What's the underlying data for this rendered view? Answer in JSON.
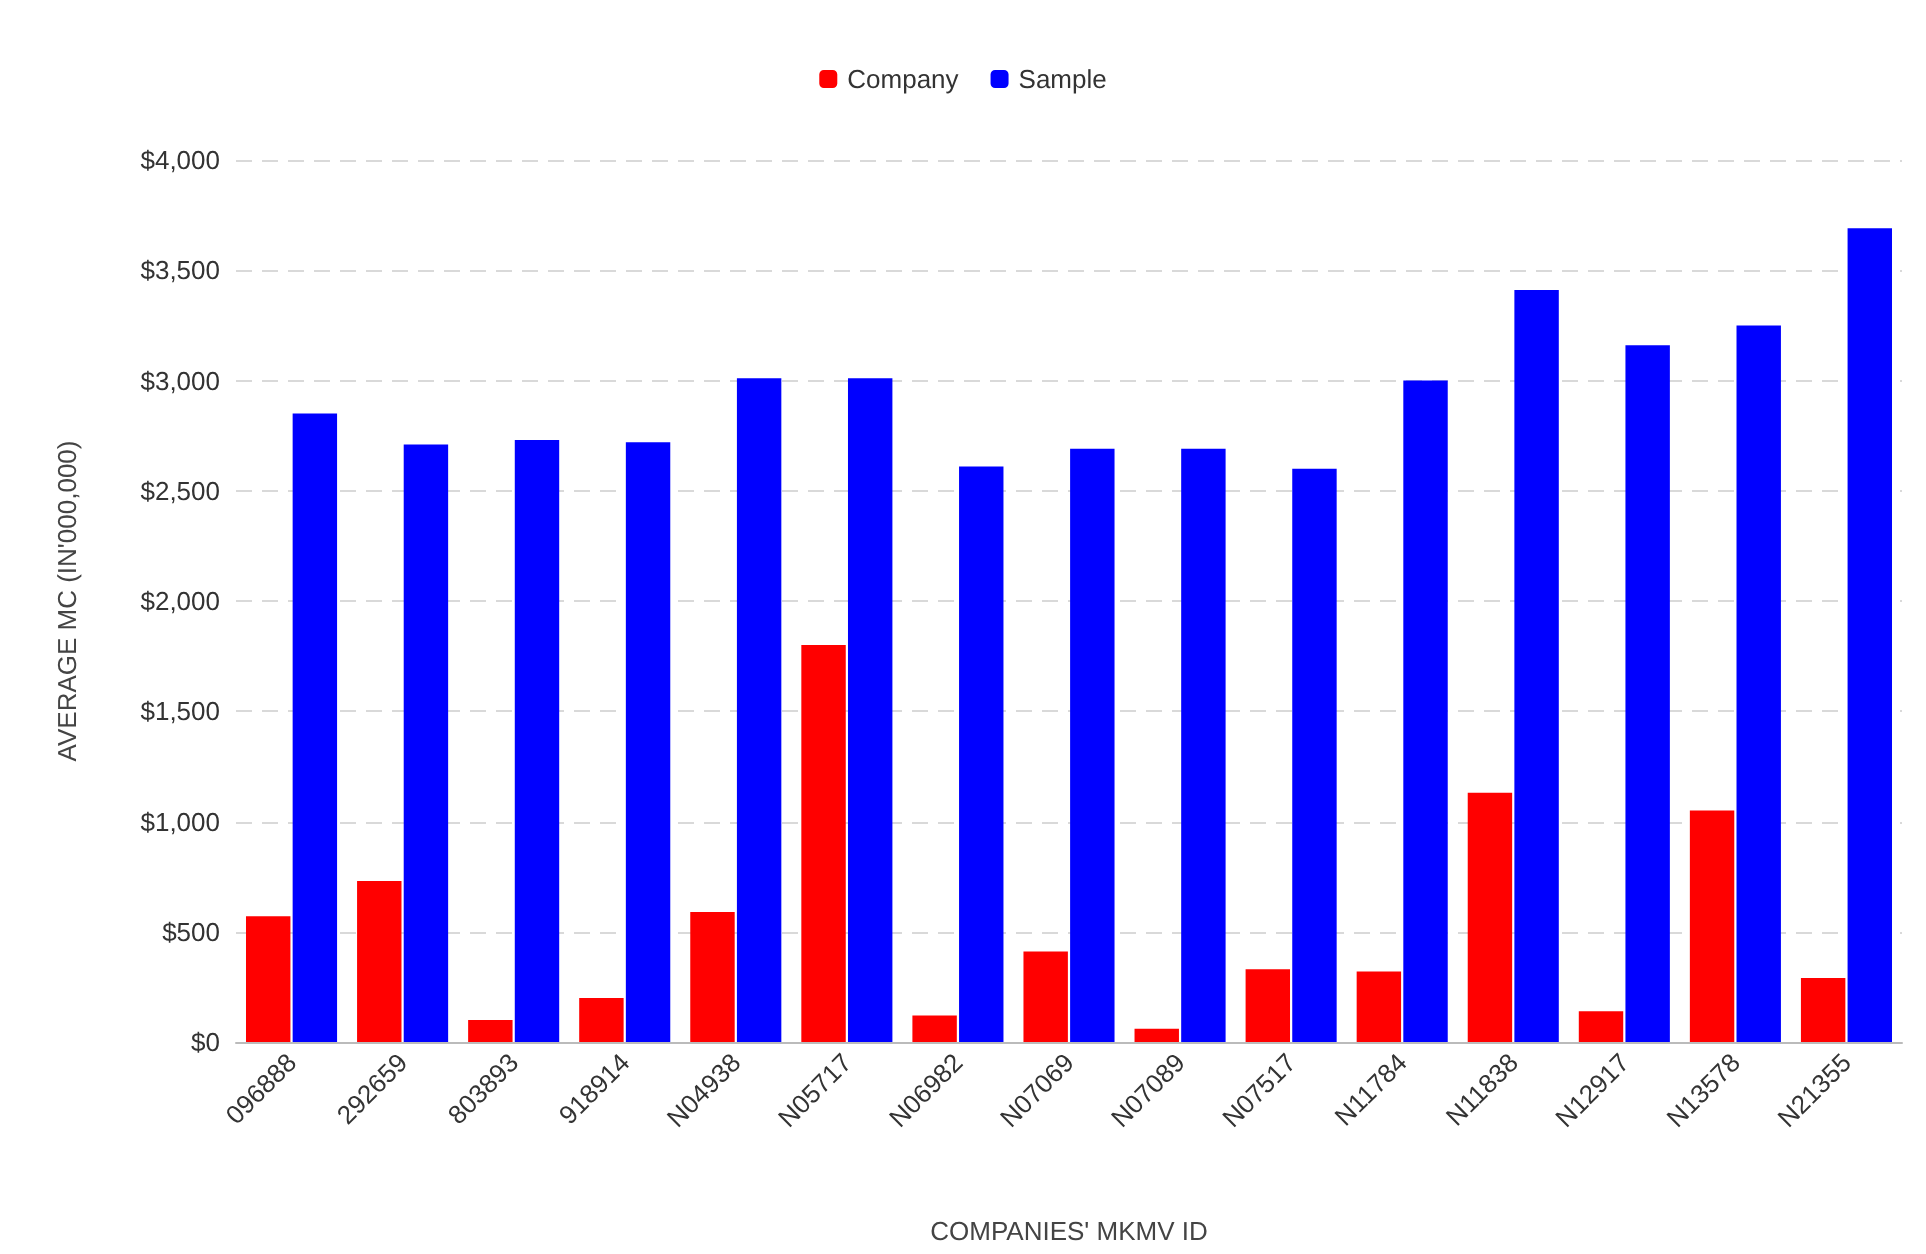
{
  "chart_data": {
    "type": "bar",
    "xlabel": "COMPANIES' MKMV ID",
    "ylabel": "AVERAGE MC (IN'000,000)",
    "categories": [
      "096888",
      "292659",
      "803893",
      "918914",
      "N04938",
      "N05717",
      "N06982",
      "N07069",
      "N07089",
      "N07517",
      "N11784",
      "N11838",
      "N12917",
      "N13578",
      "N21355"
    ],
    "series": [
      {
        "name": "Company",
        "color": "#ff0000",
        "values": [
          570,
          730,
          100,
          200,
          590,
          1800,
          120,
          410,
          60,
          330,
          320,
          1130,
          140,
          1050,
          290
        ]
      },
      {
        "name": "Sample",
        "color": "#0000ff",
        "values": [
          2850,
          2710,
          2730,
          2720,
          3010,
          3010,
          2610,
          2690,
          2690,
          2600,
          3000,
          3410,
          3160,
          3250,
          3690
        ]
      }
    ],
    "ylim": [
      0,
      4000
    ],
    "yticks": [
      {
        "value": 0,
        "label": "$0"
      },
      {
        "value": 500,
        "label": "$500"
      },
      {
        "value": 1000,
        "label": "$1,000"
      },
      {
        "value": 1500,
        "label": "$1,500"
      },
      {
        "value": 2000,
        "label": "$2,000"
      },
      {
        "value": 2500,
        "label": "$2,500"
      },
      {
        "value": 3000,
        "label": "$3,000"
      },
      {
        "value": 3500,
        "label": "$3,500"
      },
      {
        "value": 4000,
        "label": "$4,000"
      }
    ],
    "grid": "y",
    "legend": "top"
  }
}
